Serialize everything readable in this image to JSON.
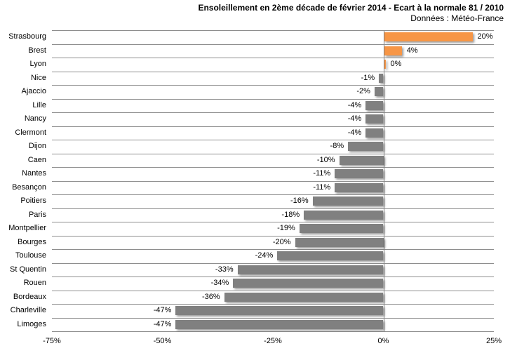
{
  "title": "Ensoleillement en 2ème décade de février 2014 - Ecart à la normale 81 / 2010",
  "subtitle": "Données : Météo-France",
  "colors": {
    "positive_bar": "#F79646",
    "negative_bar": "#808080",
    "gridline": "#8e8e8e",
    "zero_axis": "#7f7f7f",
    "text": "#000000",
    "background": "#ffffff"
  },
  "chart_data": {
    "type": "bar",
    "orientation": "horizontal",
    "title": "Ensoleillement en 2ème décade de février 2014 - Ecart à la normale 81 / 2010",
    "subtitle": "Données : Météo-France",
    "categories": [
      "Strasbourg",
      "Brest",
      "Lyon",
      "Nice",
      "Ajaccio",
      "Lille",
      "Nancy",
      "Clermont",
      "Dijon",
      "Caen",
      "Nantes",
      "Besançon",
      "Poitiers",
      "Paris",
      "Montpellier",
      "Bourges",
      "Toulouse",
      "St Quentin",
      "Rouen",
      "Bordeaux",
      "Charleville",
      "Limoges"
    ],
    "values": [
      20,
      4,
      0,
      -1,
      -2,
      -4,
      -4,
      -4,
      -8,
      -10,
      -11,
      -11,
      -16,
      -18,
      -19,
      -20,
      -24,
      -33,
      -34,
      -36,
      -47,
      -47
    ],
    "value_labels": [
      "20%",
      "4%",
      "0%",
      "-1%",
      "-2%",
      "-4%",
      "-4%",
      "-4%",
      "-8%",
      "-10%",
      "-11%",
      "-11%",
      "-16%",
      "-18%",
      "-19%",
      "-20%",
      "-24%",
      "-33%",
      "-34%",
      "-36%",
      "-47%",
      "-47%"
    ],
    "xlabel": "",
    "ylabel": "",
    "xlim": [
      -75,
      25
    ],
    "x_ticks": [
      {
        "value": -75,
        "label": "-75%"
      },
      {
        "value": -50,
        "label": "-50%"
      },
      {
        "value": -25,
        "label": "-25%"
      },
      {
        "value": 0,
        "label": "0%"
      },
      {
        "value": 25,
        "label": "25%"
      }
    ],
    "legend": "none",
    "grid": "horizontal category separators + zero axis line"
  }
}
